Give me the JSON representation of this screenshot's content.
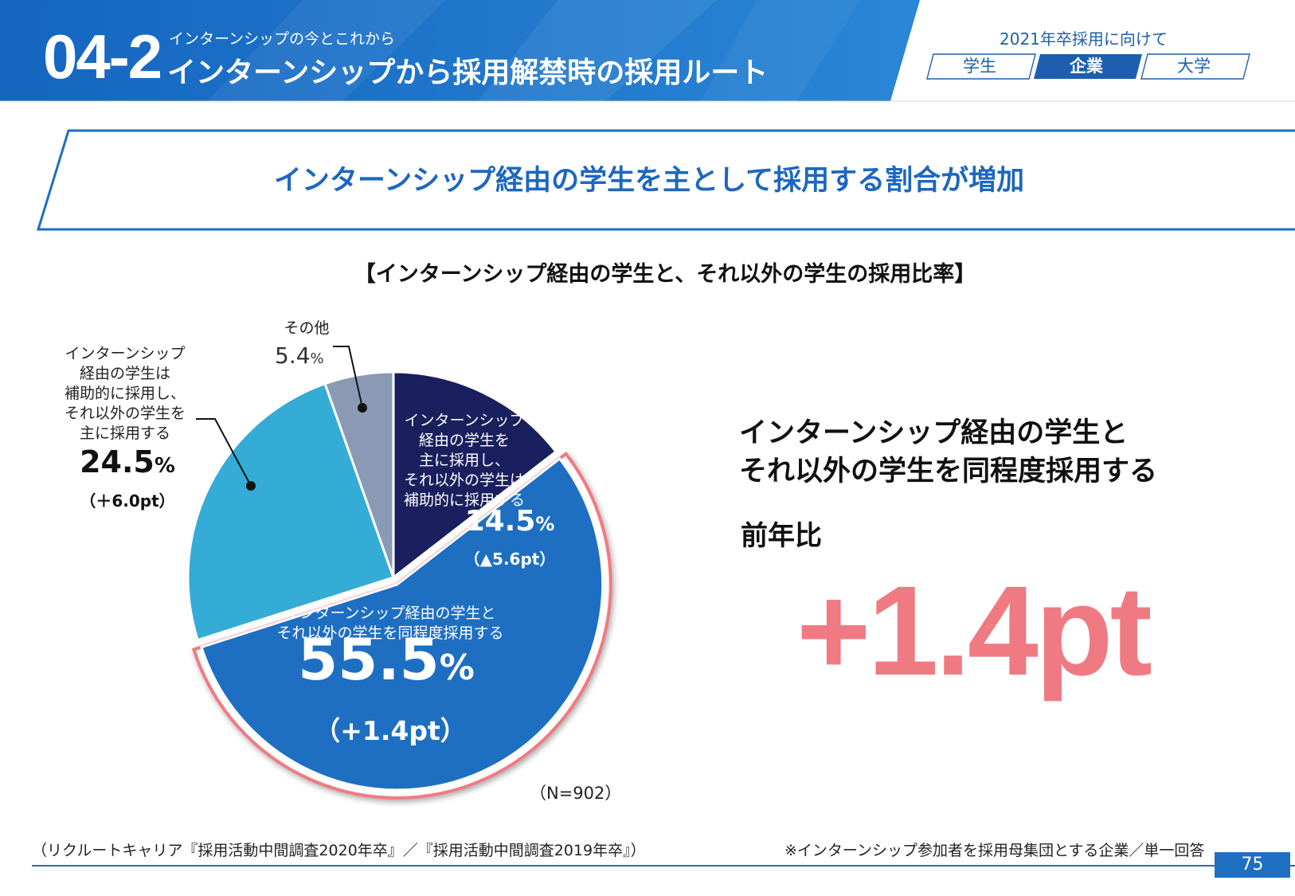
{
  "header": {
    "section_number": "04-2",
    "section_subtitle": "インターンシップの今とこれから",
    "section_title": "インターンシップから採用解禁時の採用ルート",
    "target_label": "2021年卒採用に向けて",
    "tabs": [
      {
        "label": "学生",
        "active": false
      },
      {
        "label": "企業",
        "active": true
      },
      {
        "label": "大学",
        "active": false
      }
    ]
  },
  "headline": "インターンシップ経由の学生を主として採用する割合が増加",
  "chart_data": {
    "type": "pie",
    "title": "【インターンシップ経由の学生と、それ以外の学生の採用比率】",
    "unit": "%",
    "slices": [
      {
        "label": "インターンシップ経由の学生を主に採用し、それ以外の学生は補助的に採用する",
        "value": 14.5,
        "value_text": "14.5",
        "change": "（▲5.6pt）",
        "color": "#1a1f5e"
      },
      {
        "label": "インターンシップ経由の学生とそれ以外の学生を同程度採用する",
        "value": 55.5,
        "value_text": "55.5",
        "change": "（+1.4pt）",
        "color": "#1e6fc2",
        "highlighted": true
      },
      {
        "label": "インターンシップ経由の学生は補助的に採用し、それ以外の学生を主に採用する",
        "value": 24.5,
        "value_text": "24.5",
        "change": "（＋6.0pt）",
        "color": "#35acd5"
      },
      {
        "label": "その他",
        "value": 5.4,
        "value_text": "5.4",
        "change": "",
        "color": "#8a9ab4"
      }
    ],
    "label_lines": {
      "main": [
        "インターンシップ",
        "経由の学生を",
        "主に採用し、",
        "それ以外の学生は",
        "補助的に採用する"
      ],
      "equal": [
        "インターンシップ経由の学生と",
        "それ以外の学生を同程度採用する"
      ],
      "sub": [
        "インターンシップ",
        "経由の学生は",
        "補助的に採用し、",
        "それ以外の学生を",
        "主に採用する"
      ],
      "other": "その他"
    },
    "sample_size": "（N=902）"
  },
  "callout": {
    "title_lines": [
      "インターンシップ経由の学生と",
      "それ以外の学生を同程度採用する"
    ],
    "yoy_label": "前年比",
    "yoy_value": "+1.4pt"
  },
  "footer": {
    "source": "（リクルートキャリア『採用活動中間調査2020年卒』／『採用活動中間調査2019年卒』）",
    "note": "※インターンシップ参加者を採用母集団とする企業／単一回答",
    "page_number": "75"
  },
  "colors": {
    "brand_blue": "#1e6fc2",
    "navy": "#1a1f5e",
    "sky": "#35acd5",
    "gray": "#8a9ab4",
    "highlight_pink": "#f07a82"
  }
}
